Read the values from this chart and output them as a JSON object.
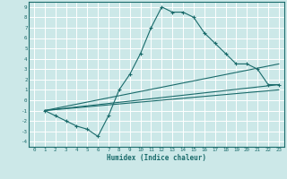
{
  "xlabel": "Humidex (Indice chaleur)",
  "bg_color": "#cce8e8",
  "grid_color": "#ffffff",
  "line_color": "#1a6b6b",
  "xlim": [
    -0.5,
    23.5
  ],
  "ylim": [
    -4.5,
    9.5
  ],
  "xticks": [
    0,
    1,
    2,
    3,
    4,
    5,
    6,
    7,
    8,
    9,
    10,
    11,
    12,
    13,
    14,
    15,
    16,
    17,
    18,
    19,
    20,
    21,
    22,
    23
  ],
  "yticks": [
    -4,
    -3,
    -2,
    -1,
    0,
    1,
    2,
    3,
    4,
    5,
    6,
    7,
    8,
    9
  ],
  "series_main": {
    "x": [
      1,
      2,
      3,
      4,
      5,
      6,
      7,
      8,
      9,
      10,
      11,
      12,
      13,
      14,
      15,
      16,
      17,
      18,
      19,
      20,
      21,
      22,
      23
    ],
    "y": [
      -1,
      -1.5,
      -2,
      -2.5,
      -2.8,
      -3.5,
      -1.5,
      1.0,
      2.5,
      4.5,
      7.0,
      9.0,
      8.5,
      8.5,
      8.0,
      6.5,
      5.5,
      4.5,
      3.5,
      3.5,
      3.0,
      1.5,
      1.5
    ]
  },
  "series_lines": [
    {
      "x": [
        1,
        23
      ],
      "y": [
        -1,
        3.5
      ]
    },
    {
      "x": [
        1,
        23
      ],
      "y": [
        -1,
        1.5
      ]
    },
    {
      "x": [
        1,
        23
      ],
      "y": [
        -1,
        1.0
      ]
    }
  ]
}
